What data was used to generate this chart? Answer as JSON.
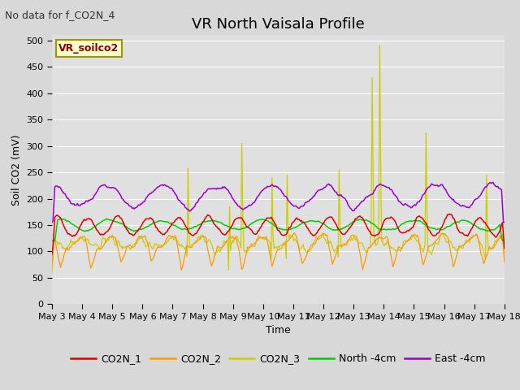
{
  "title": "VR North Vaisala Profile",
  "subtitle": "No data for f_CO2N_4",
  "ylabel": "Soil CO2 (mV)",
  "xlabel": "Time",
  "box_label": "VR_soilco2",
  "ylim": [
    0,
    510
  ],
  "yticks": [
    0,
    50,
    100,
    150,
    200,
    250,
    300,
    350,
    400,
    450,
    500
  ],
  "x_tick_labels": [
    "May 3",
    "May 4",
    "May 5",
    "May 6",
    "May 7",
    "May 8",
    "May 9",
    "May 10",
    "May 11",
    "May 12",
    "May 13",
    "May 14",
    "May 15",
    "May 16",
    "May 17",
    "May 18"
  ],
  "colors": {
    "CO2N_1": "#dd0000",
    "CO2N_2": "#ff9900",
    "CO2N_3": "#cccc00",
    "North": "#00cc00",
    "East": "#9900cc"
  },
  "legend_labels": [
    "CO2N_1",
    "CO2N_2",
    "CO2N_3",
    "North -4cm",
    "East -4cm"
  ],
  "fig_bg": "#d8d8d8",
  "plot_bg": "#e0e0e0",
  "grid_color": "#ffffff",
  "title_fontsize": 13,
  "axis_fontsize": 9,
  "tick_fontsize": 8,
  "subtitle_fontsize": 9
}
